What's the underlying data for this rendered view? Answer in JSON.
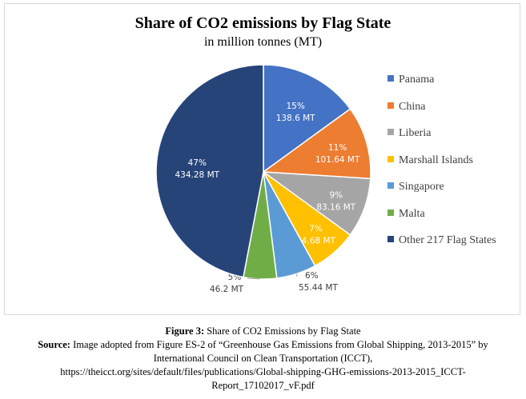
{
  "chart_data": {
    "type": "pie",
    "title": "Share of CO2 emissions by Flag State",
    "subtitle": "in million tonnes (MT)",
    "legend_position": "right",
    "slices": [
      {
        "name": "Panama",
        "value": 138.6,
        "pct_label": "15%",
        "value_label": "138.6 MT",
        "color": "#4472c4"
      },
      {
        "name": "China",
        "value": 101.64,
        "pct_label": "11%",
        "value_label": "101.64 MT",
        "color": "#ed7d31"
      },
      {
        "name": "Liberia",
        "value": 83.16,
        "pct_label": "9%",
        "value_label": "83.16 MT",
        "color": "#a5a5a5"
      },
      {
        "name": "Marshall Islands",
        "value": 64.68,
        "pct_label": "7%",
        "value_label": "64.68 MT",
        "color": "#ffc000"
      },
      {
        "name": "Singapore",
        "value": 55.44,
        "pct_label": "6%",
        "value_label": "55.44 MT",
        "color": "#5b9bd5"
      },
      {
        "name": "Malta",
        "value": 46.2,
        "pct_label": "5%",
        "value_label": "46.2 MT",
        "color": "#70ad47"
      },
      {
        "name": "Other 217  Flag States",
        "value": 434.28,
        "pct_label": "47%",
        "value_label": "434.28 MT",
        "color": "#264478"
      }
    ]
  },
  "caption": {
    "figure_label": "Figure 3:",
    "figure_text": " Share of CO2 Emissions by Flag State",
    "source_label": "Source:",
    "source_text": " Image adopted from Figure ES-2 of “Greenhouse Gas Emissions from Global Shipping, 2013-2015” by",
    "line3": "International Council on Clean Transportation (ICCT),",
    "line4": "https://theicct.org/sites/default/files/publications/Global-shipping-GHG-emissions-2013-2015_ICCT-",
    "line5": "Report_17102017_vF.pdf"
  }
}
